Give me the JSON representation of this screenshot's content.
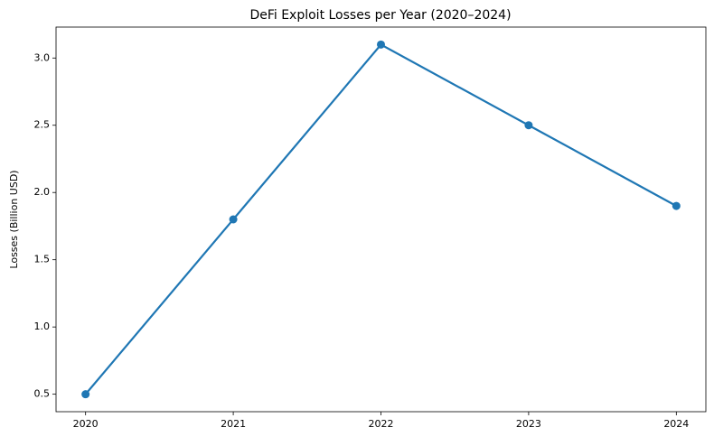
{
  "chart_data": {
    "type": "line",
    "title": "DeFi Exploit Losses per Year (2020–2024)",
    "y_label": "Losses (Billion USD)",
    "x": [
      2020,
      2021,
      2022,
      2023,
      2024
    ],
    "series": [
      {
        "color": "#1f77b4",
        "values": [
          0.5,
          1.8,
          3.1,
          2.5,
          1.9
        ]
      }
    ],
    "xlim": [
      2019.8,
      2024.2
    ],
    "xticks": [
      2020,
      2021,
      2022,
      2023,
      2024
    ],
    "ylim": [
      0.37,
      3.23
    ],
    "yticks": [
      0.5,
      {
        "value": 1.0,
        "label": "1.0"
      },
      1.5,
      {
        "value": 2.0,
        "label": "2.0"
      },
      2.5,
      {
        "value": 3.0,
        "label": "3.0"
      }
    ],
    "grid": false
  }
}
